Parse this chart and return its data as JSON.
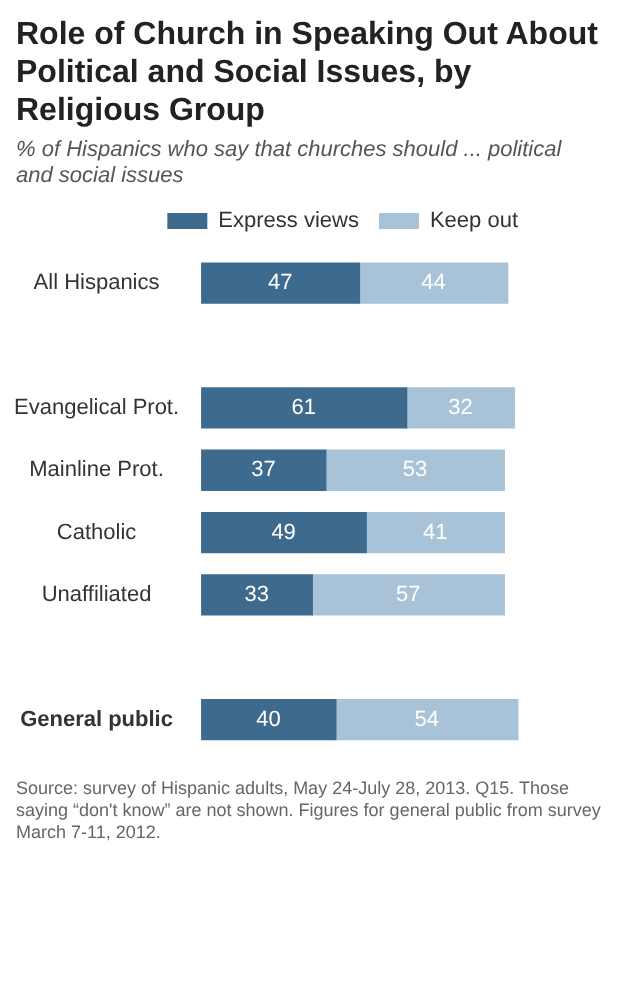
{
  "chart_data": {
    "type": "bar",
    "orientation": "horizontal",
    "stacked": true,
    "title": "Role of Church in Speaking Out About Political and Social Issues, by Religious Group",
    "subtitle": "% of Hispanics who say that churches should ... political and social issues",
    "categories": [
      "All Hispanics",
      null,
      "Evangelical Prot.",
      "Mainline Prot.",
      "Catholic",
      "Unaffiliated",
      null,
      "General public"
    ],
    "series": [
      {
        "name": "Express views",
        "color": "#3e6a8e",
        "values": [
          47,
          null,
          61,
          37,
          49,
          33,
          null,
          40
        ]
      },
      {
        "name": "Keep out",
        "color": "#a8c3d7",
        "values": [
          44,
          null,
          32,
          53,
          41,
          57,
          null,
          54
        ]
      }
    ],
    "data_labels": true,
    "legend": "top",
    "grid": false,
    "annotations": [
      "Source: survey of Hispanic adults, May 24-July 28, 2013. Q15. Those saying “don't know” are not shown. Figures for general public from survey March 7-11, 2012."
    ]
  }
}
